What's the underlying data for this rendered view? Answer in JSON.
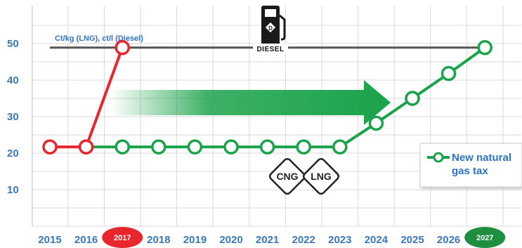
{
  "chart_data": {
    "type": "line",
    "units_label": "Ct/kg (LNG), ct/l (Diesel)",
    "x": [
      "2015",
      "2016",
      "2017",
      "2018",
      "2019",
      "2020",
      "2021",
      "2022",
      "2023",
      "2024",
      "2025",
      "2026",
      "2027"
    ],
    "highlighted_x": [
      "2017",
      "2027"
    ],
    "ylim": [
      0,
      57
    ],
    "yticks": [
      10,
      20,
      30,
      40,
      50
    ],
    "grid": true,
    "series": [
      {
        "color": "#e8262d",
        "points": [
          [
            "2015",
            21.7
          ],
          [
            "2016",
            21.7
          ],
          [
            "2017",
            48.9
          ]
        ]
      },
      {
        "name": "New natural gas tax",
        "color": "#1aa34a",
        "points": [
          [
            "2016",
            21.7
          ],
          [
            "2017",
            21.7
          ],
          [
            "2018",
            21.7
          ],
          [
            "2019",
            21.7
          ],
          [
            "2020",
            21.7
          ],
          [
            "2021",
            21.7
          ],
          [
            "2022",
            21.7
          ],
          [
            "2023",
            21.7
          ],
          [
            "2024",
            28.2
          ],
          [
            "2025",
            35.0
          ],
          [
            "2026",
            41.8
          ],
          [
            "2027",
            48.9
          ]
        ]
      }
    ],
    "reference_lines": [
      {
        "y": 48.9,
        "color": "#555555",
        "label": "DIESEL"
      }
    ],
    "annotations": {
      "diamonds": [
        "CNG",
        "LNG"
      ],
      "diesel_icon": "fuel-pump-icon",
      "arrow": "green-trend-arrow"
    },
    "legend": {
      "placement": "right",
      "labels": [
        "New natural",
        "gas tax"
      ]
    }
  }
}
